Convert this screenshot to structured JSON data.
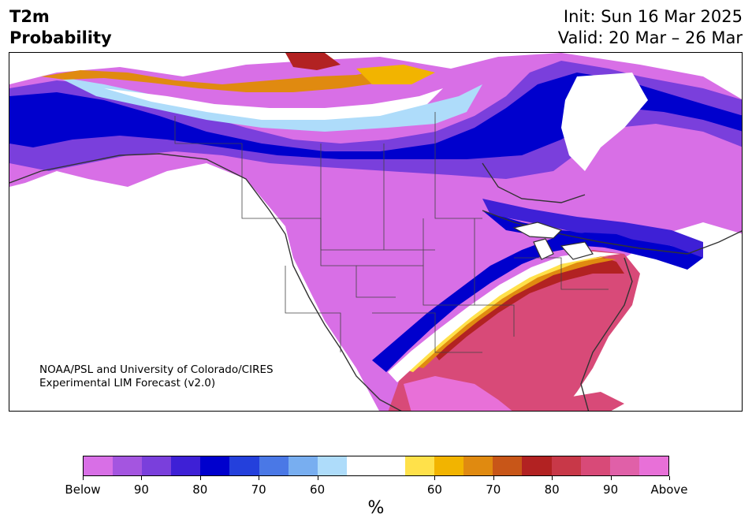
{
  "header": {
    "variable": "T2m",
    "product": "Probability",
    "init": "Init: Sun 16 Mar 2025",
    "valid": "Valid: 20 Mar – 26 Mar"
  },
  "credit": {
    "line1": "NOAA/PSL and University of Colorado/CIRES",
    "line2": "Experimental LIM Forecast (v2.0)"
  },
  "colorbar": {
    "unit": "%",
    "colors": [
      "#d86fe6",
      "#a455e0",
      "#7a3fdc",
      "#3e20d6",
      "#0000cd",
      "#2440dc",
      "#4a78e6",
      "#78aef0",
      "#aedcfa",
      "#ffffff",
      "#ffffff",
      "#ffe14a",
      "#f2b400",
      "#e08a10",
      "#c85618",
      "#b22222",
      "#c83848",
      "#d84a78",
      "#e060a8",
      "#e870d8"
    ],
    "labels": [
      "Below",
      "90",
      "80",
      "70",
      "60",
      "60",
      "70",
      "80",
      "90",
      "Above"
    ]
  },
  "map_legend_colors": {
    "below_strong": "#d86fe6",
    "below_mid": "#7a3fdc",
    "below_core": "#0000cd",
    "near_normal": "#ffffff",
    "above_weak": "#ffe14a",
    "above_mid": "#e08a10",
    "above_strong": "#b22222",
    "above_max": "#e870d8"
  }
}
